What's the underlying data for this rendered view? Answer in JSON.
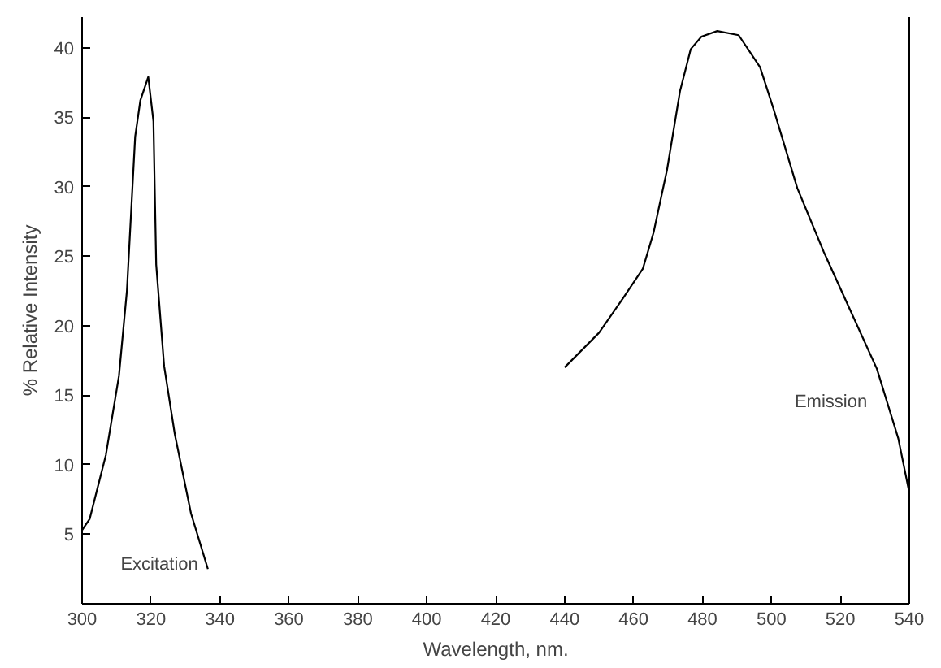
{
  "chart_data": {
    "type": "line",
    "xlabel": "Wavelength, nm.",
    "ylabel": "% Relative Intensity",
    "xlim": [
      300,
      540
    ],
    "ylim": [
      0,
      42.2
    ],
    "xticks": [
      300,
      320,
      340,
      360,
      380,
      400,
      420,
      440,
      460,
      480,
      500,
      520,
      540
    ],
    "yticks": [
      5,
      10,
      15,
      20,
      25,
      30,
      35,
      40
    ],
    "grid": false,
    "marker": "none",
    "line_style": "solid",
    "series": [
      {
        "name": "Excitation",
        "color": "#000000",
        "x": [
          300,
          302.2,
          306.9,
          310.7,
          313,
          315.4,
          316.9,
          319.2,
          320.7,
          321.5,
          323.8,
          326.9,
          331.6,
          336.5
        ],
        "values": [
          5.3,
          6.1,
          10.7,
          16.4,
          22.5,
          33.6,
          36.2,
          37.9,
          34.7,
          24.4,
          17.1,
          12.2,
          6.5,
          2.5
        ]
      },
      {
        "name": "Emission",
        "color": "#000000",
        "x": [
          440,
          450,
          457,
          462.7,
          465.8,
          469.7,
          473.5,
          476.6,
          479.7,
          484.3,
          490.5,
          496.7,
          500.6,
          507.5,
          515.2,
          522.9,
          530.6,
          536.8,
          540
        ],
        "values": [
          17,
          19.5,
          22,
          24.1,
          26.7,
          31.2,
          36.9,
          39.9,
          40.8,
          41.2,
          40.9,
          38.6,
          35.6,
          29.9,
          25.3,
          21.1,
          16.9,
          11.9,
          8
        ]
      }
    ]
  }
}
